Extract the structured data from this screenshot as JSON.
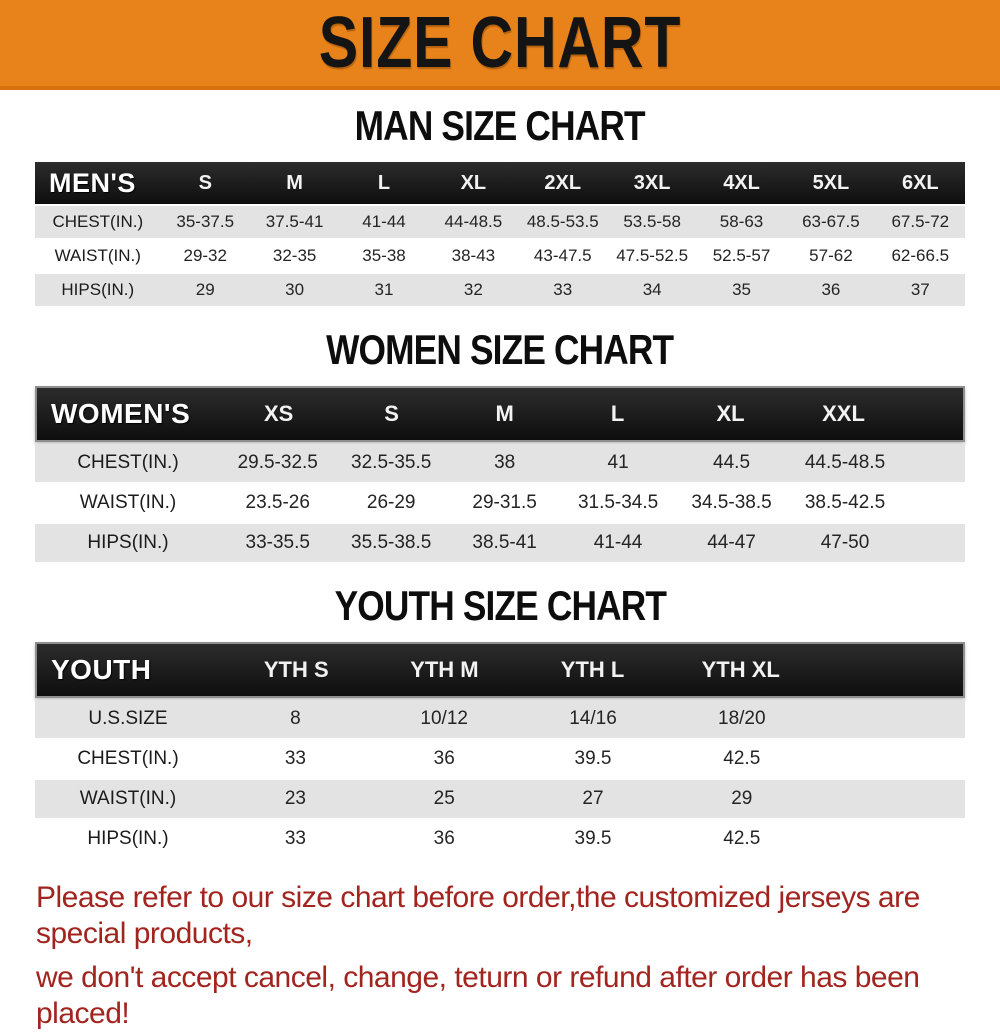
{
  "banner": {
    "title": "SIZE CHART",
    "bg_color": "#e8831c",
    "text_color": "#141414"
  },
  "sections": [
    {
      "title": "MAN SIZE CHART",
      "header_label": "MEN'S",
      "columns": [
        "S",
        "M",
        "L",
        "XL",
        "2XL",
        "3XL",
        "4XL",
        "5XL",
        "6XL"
      ],
      "rows": [
        {
          "label": "CHEST(IN.)",
          "values": [
            "35-37.5",
            "37.5-41",
            "41-44",
            "44-48.5",
            "48.5-53.5",
            "53.5-58",
            "58-63",
            "63-67.5",
            "67.5-72"
          ]
        },
        {
          "label": "WAIST(IN.)",
          "values": [
            "29-32",
            "32-35",
            "35-38",
            "38-43",
            "43-47.5",
            "47.5-52.5",
            "52.5-57",
            "57-62",
            "62-66.5"
          ]
        },
        {
          "label": "HIPS(IN.)",
          "values": [
            "29",
            "30",
            "31",
            "32",
            "33",
            "34",
            "35",
            "36",
            "37"
          ]
        }
      ]
    },
    {
      "title": "WOMEN SIZE CHART",
      "header_label": "WOMEN'S",
      "columns": [
        "XS",
        "S",
        "M",
        "L",
        "XL",
        "XXL"
      ],
      "rows": [
        {
          "label": "CHEST(IN.)",
          "values": [
            "29.5-32.5",
            "32.5-35.5",
            "38",
            "41",
            "44.5",
            "44.5-48.5"
          ]
        },
        {
          "label": "WAIST(IN.)",
          "values": [
            "23.5-26",
            "26-29",
            "29-31.5",
            "31.5-34.5",
            "34.5-38.5",
            "38.5-42.5"
          ]
        },
        {
          "label": "HIPS(IN.)",
          "values": [
            "33-35.5",
            "35.5-38.5",
            "38.5-41",
            "41-44",
            "44-47",
            "47-50"
          ]
        }
      ]
    },
    {
      "title": "YOUTH SIZE CHART",
      "header_label": "YOUTH",
      "columns": [
        "YTH S",
        "YTH M",
        "YTH L",
        "YTH XL"
      ],
      "rows": [
        {
          "label": "U.S.SIZE",
          "values": [
            "8",
            "10/12",
            "14/16",
            "18/20"
          ]
        },
        {
          "label": "CHEST(IN.)",
          "values": [
            "33",
            "36",
            "39.5",
            "42.5"
          ]
        },
        {
          "label": "WAIST(IN.)",
          "values": [
            "23",
            "25",
            "27",
            "29"
          ]
        },
        {
          "label": "HIPS(IN.)",
          "values": [
            "33",
            "36",
            "39.5",
            "42.5"
          ]
        }
      ]
    }
  ],
  "table_style": {
    "header_bg": "#151515",
    "shade_row_bg": "#e3e3e3",
    "plain_row_bg": "#ffffff"
  },
  "footer": {
    "line1": "Please refer to our size chart before order,the customized jerseys are special products,",
    "line2": "we don't accept cancel, change, teturn or refund after order has been placed!",
    "text_color": "#a1241f"
  }
}
